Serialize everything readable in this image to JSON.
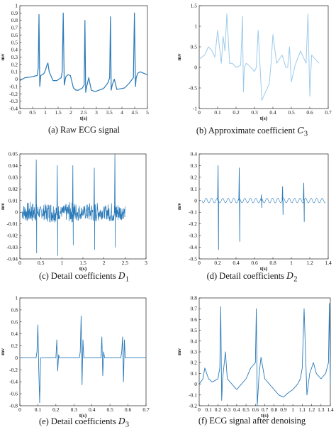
{
  "chart_data": [
    {
      "id": "a",
      "type": "line",
      "caption": "(a) Raw ECG signal",
      "xlabel": "t(s)",
      "ylabel": "mv",
      "xlim": [
        0,
        5
      ],
      "ylim": [
        -0.4,
        1
      ],
      "xticks": [
        "0",
        "0.5",
        "1",
        "1.5",
        "2",
        "2.5",
        "3",
        "3.5",
        "4",
        "4.5",
        "5"
      ],
      "yticks": [
        "-0.4",
        "-0.3",
        "-0.2",
        "-0.1",
        "0",
        "0.1",
        "0.2",
        "0.3",
        "0.4",
        "0.5",
        "0.6",
        "0.7",
        "0.8",
        "0.9",
        "1"
      ],
      "grid": false,
      "line_color": "#2a7ab8",
      "line_width": 1.2,
      "series": [
        {
          "x": [
            0,
            0.2,
            0.45,
            0.68,
            0.72,
            0.75,
            0.78,
            0.82,
            0.88,
            0.95,
            1.0,
            1.07,
            1.1,
            1.15,
            1.3,
            1.45,
            1.62,
            1.66,
            1.7,
            1.74,
            1.8,
            1.88,
            1.98,
            2.1,
            2.2,
            2.3,
            2.45,
            2.52,
            2.55,
            2.58,
            2.62,
            2.7,
            2.8,
            2.95,
            3.1,
            3.2,
            3.3,
            3.45,
            3.52,
            3.55,
            3.58,
            3.62,
            3.7,
            3.8,
            3.95,
            4.1,
            4.3,
            4.45,
            4.49,
            4.53,
            4.56,
            4.62,
            4.72,
            4.85,
            5
          ],
          "y": [
            -0.02,
            0.02,
            0.03,
            0.05,
            0.15,
            0.88,
            -0.1,
            0.05,
            0.06,
            0.08,
            0.12,
            0.2,
            0.22,
            0.1,
            -0.02,
            -0.02,
            0.02,
            0.1,
            0.9,
            -0.08,
            0.03,
            0.06,
            0.05,
            -0.12,
            -0.15,
            -0.15,
            -0.12,
            -0.08,
            0.8,
            -0.18,
            -0.1,
            0.02,
            -0.15,
            -0.17,
            -0.15,
            -0.14,
            -0.12,
            -0.05,
            0.02,
            0.85,
            -0.15,
            -0.08,
            0.0,
            -0.14,
            -0.13,
            -0.12,
            -0.05,
            0.02,
            0.9,
            -0.1,
            0.02,
            0.08,
            0.1,
            0.08,
            0.06
          ]
        }
      ]
    },
    {
      "id": "b",
      "type": "line",
      "caption": "(b) Approximate coefficient",
      "caption_math": "C",
      "caption_sub": "3",
      "xlabel": "t(s)",
      "ylabel": "mv",
      "xlim": [
        0,
        0.7
      ],
      "ylim": [
        -1,
        1.5
      ],
      "xticks": [
        "0",
        "0.1",
        "0.2",
        "0.3",
        "0.4",
        "0.5",
        "0.6",
        "0.7"
      ],
      "yticks": [
        "-1",
        "-0.5",
        "0",
        "0.5",
        "1",
        "1.5"
      ],
      "grid": false,
      "line_color": "#9ccbec",
      "line_width": 1.0,
      "series": [
        {
          "x": [
            0,
            0.03,
            0.05,
            0.07,
            0.085,
            0.1,
            0.12,
            0.13,
            0.14,
            0.15,
            0.165,
            0.18,
            0.2,
            0.225,
            0.235,
            0.24,
            0.245,
            0.255,
            0.27,
            0.29,
            0.3,
            0.31,
            0.32,
            0.34,
            0.36,
            0.38,
            0.39,
            0.4,
            0.42,
            0.45,
            0.47,
            0.48,
            0.49,
            0.5,
            0.52,
            0.55,
            0.58,
            0.59,
            0.6,
            0.61,
            0.63,
            0.65
          ],
          "y": [
            0.2,
            0.3,
            0.5,
            0.4,
            0.25,
            0.9,
            0.1,
            0.75,
            0.4,
            1.3,
            0.1,
            0.1,
            0.0,
            0.05,
            1.25,
            -0.6,
            0.0,
            0.1,
            0.05,
            -0.05,
            -0.1,
            0.0,
            0.9,
            -0.8,
            -0.6,
            -0.4,
            0.1,
            0.8,
            0.1,
            0.3,
            0.0,
            0.0,
            0.5,
            -0.35,
            0.05,
            0.4,
            0.1,
            1.3,
            -0.7,
            0.3,
            0.2,
            0.1
          ]
        }
      ]
    },
    {
      "id": "c",
      "type": "line",
      "caption": "(c) Detail coefficients",
      "caption_math": "D",
      "caption_sub": "1",
      "xlabel": "t(s)",
      "ylabel": "mv",
      "xlim": [
        0,
        3
      ],
      "ylim": [
        -0.04,
        0.05
      ],
      "xticks": [
        "0",
        "0.5",
        "1",
        "1.5",
        "2",
        "2.5",
        "3"
      ],
      "yticks": [
        "-0.04",
        "-0.03",
        "-0.02",
        "-0.01",
        "0",
        "0.01",
        "0.02",
        "0.03",
        "0.04",
        "0.05"
      ],
      "grid": false,
      "line_color": "#2a7ab8",
      "line_width": 0.8,
      "noise_band": {
        "x_start": 0.05,
        "x_end": 2.5,
        "amplitude": 0.009
      },
      "series": [
        {
          "x": [
            0.38,
            0.39,
            0.4,
            0.88,
            0.89,
            0.9,
            1.25,
            1.26,
            1.27,
            1.76,
            1.77,
            1.78,
            2.25,
            2.26,
            2.27
          ],
          "y": [
            0.0,
            0.045,
            -0.035,
            0.0,
            0.04,
            -0.037,
            0.0,
            0.04,
            -0.028,
            0.0,
            0.038,
            -0.032,
            0.0,
            0.05,
            -0.03
          ]
        }
      ]
    },
    {
      "id": "d",
      "type": "line",
      "caption": "(d) Detail coefficients",
      "caption_math": "D",
      "caption_sub": "2",
      "xlabel": "t(s)",
      "ylabel": "mv",
      "xlim": [
        0,
        1.4
      ],
      "ylim": [
        -0.5,
        0.4
      ],
      "xticks": [
        "0",
        "0.2",
        "0.4",
        "0.6",
        "0.8",
        "1",
        "1.2",
        "1.4"
      ],
      "yticks": [
        "-0.5",
        "-0.4",
        "-0.3",
        "-0.2",
        "-0.1",
        "0",
        "0.1",
        "0.2",
        "0.3",
        "0.4"
      ],
      "grid": false,
      "line_color": "#2a7ab8",
      "line_width": 0.9,
      "wave": {
        "x_start": 0.03,
        "x_end": 1.37,
        "amplitude": 0.02,
        "period": 0.06
      },
      "series": [
        {
          "x": [
            0.2,
            0.205,
            0.21,
            0.43,
            0.435,
            0.44,
            0.67,
            0.675,
            0.68,
            0.9,
            0.905,
            0.91,
            1.13,
            1.135,
            1.14
          ],
          "y": [
            0.0,
            0.3,
            -0.42,
            0.0,
            0.28,
            -0.35,
            0.0,
            0.05,
            -0.06,
            0.0,
            0.12,
            -0.12,
            0.0,
            0.15,
            -0.18
          ]
        }
      ]
    },
    {
      "id": "e",
      "type": "line",
      "caption": "(e) Detail coefficients",
      "caption_math": "D",
      "caption_sub": "3",
      "xlabel": "t(s)",
      "ylabel": "mv",
      "xlim": [
        0,
        0.7
      ],
      "ylim": [
        -0.8,
        1
      ],
      "xticks": [
        "0",
        "0.1",
        "0.2",
        "0.3",
        "0.4",
        "0.5",
        "0.6",
        "0.7"
      ],
      "yticks": [
        "-0.8",
        "-0.6",
        "-0.4",
        "-0.2",
        "0",
        "0.2",
        "0.4",
        "0.6",
        "0.8",
        "1"
      ],
      "grid": false,
      "line_color": "#2a7ab8",
      "line_width": 0.9,
      "series": [
        {
          "x": [
            0,
            0.09,
            0.095,
            0.1,
            0.105,
            0.11,
            0.115,
            0.2,
            0.205,
            0.21,
            0.215,
            0.22,
            0.33,
            0.335,
            0.34,
            0.345,
            0.35,
            0.355,
            0.45,
            0.455,
            0.46,
            0.465,
            0.47,
            0.56,
            0.565,
            0.57,
            0.575,
            0.58,
            0.585,
            0.7
          ],
          "y": [
            0.0,
            0.0,
            0.1,
            0.55,
            -0.2,
            -0.75,
            0.0,
            0.0,
            0.3,
            -0.22,
            0.05,
            0.0,
            0.0,
            0.1,
            0.7,
            -0.45,
            0.3,
            0.0,
            0.0,
            0.35,
            -0.3,
            0.1,
            0.0,
            0.0,
            0.1,
            0.35,
            -0.4,
            0.3,
            0.0,
            0.0
          ]
        }
      ]
    },
    {
      "id": "f",
      "type": "line",
      "caption": "(f) ECG signal after denoising",
      "xlabel": "t(s)",
      "ylabel": "mv",
      "xlim": [
        0,
        1.4
      ],
      "ylim": [
        -0.2,
        0.8
      ],
      "xticks": [
        "0",
        "0.1",
        "0.2",
        "0.3",
        "0.4",
        "0.5",
        "0.6",
        "0.7",
        "0.8",
        "0.9",
        "1",
        "1.1",
        "1.2",
        "1.3",
        "1.4"
      ],
      "yticks": [
        "-0.2",
        "-0.1",
        "0",
        "0.1",
        "0.2",
        "0.3",
        "0.4",
        "0.5",
        "0.6",
        "0.7",
        "0.8"
      ],
      "grid": false,
      "line_color": "#2a7ab8",
      "line_width": 0.9,
      "series": [
        {
          "x": [
            0,
            0.04,
            0.06,
            0.08,
            0.1,
            0.14,
            0.2,
            0.22,
            0.23,
            0.24,
            0.25,
            0.28,
            0.3,
            0.35,
            0.4,
            0.45,
            0.5,
            0.55,
            0.58,
            0.6,
            0.61,
            0.62,
            0.64,
            0.66,
            0.7,
            0.75,
            0.8,
            0.85,
            0.9,
            0.95,
            1.0,
            1.05,
            1.08,
            1.1,
            1.12,
            1.15,
            1.18,
            1.22,
            1.25,
            1.3,
            1.35,
            1.38,
            1.39,
            1.4
          ],
          "y": [
            0.0,
            0.05,
            0.15,
            0.1,
            0.05,
            0.02,
            0.05,
            0.15,
            0.72,
            -0.15,
            0.05,
            0.3,
            0.05,
            0.0,
            -0.05,
            0.0,
            0.05,
            0.15,
            0.18,
            0.2,
            0.7,
            -0.2,
            0.1,
            0.25,
            0.05,
            0.0,
            -0.05,
            -0.1,
            -0.12,
            -0.08,
            -0.05,
            0.0,
            0.05,
            0.15,
            0.7,
            -0.1,
            0.1,
            0.2,
            0.1,
            0.05,
            0.1,
            0.2,
            0.75,
            0.0
          ]
        }
      ]
    }
  ]
}
